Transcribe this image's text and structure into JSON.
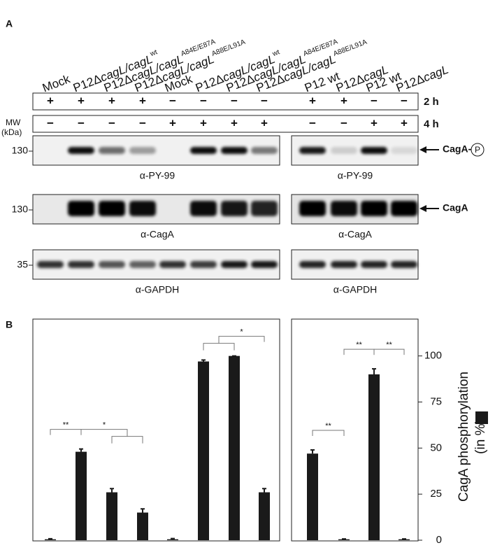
{
  "panel_labels": [
    "A",
    "B"
  ],
  "lanes": [
    {
      "prefix": "Mock"
    },
    {
      "prefix": "P12Δ",
      "italic": "cagL/cagL",
      "sup": "wt"
    },
    {
      "prefix": "P12Δ",
      "italic": "cagL/cagL",
      "sup": "A84E/E87A"
    },
    {
      "prefix": "P12Δ",
      "italic": "cagL/cagL",
      "sup": "A88E/L91A"
    },
    {
      "prefix": "Mock"
    },
    {
      "prefix": "P12Δ",
      "italic": "cagL/cagL",
      "sup": "wt"
    },
    {
      "prefix": "P12Δ",
      "italic": "cagL/cagL",
      "sup": "A84E/E87A"
    },
    {
      "prefix": "P12Δ",
      "italic": "cagL/cagL",
      "sup": "A88E/L91A"
    },
    {
      "prefix": "P12 wt"
    },
    {
      "prefix": "P12Δ",
      "italic": "cagL"
    },
    {
      "prefix": "P12 wt"
    },
    {
      "prefix": "P12Δ",
      "italic": "cagL"
    }
  ],
  "conditions": [
    {
      "label": "2 h",
      "marks": [
        "+",
        "+",
        "+",
        "+",
        "−",
        "−",
        "−",
        "−",
        "+",
        "+",
        "−",
        "−"
      ]
    },
    {
      "label": "4 h",
      "marks": [
        "−",
        "−",
        "−",
        "−",
        "+",
        "+",
        "+",
        "+",
        "−",
        "−",
        "+",
        "+"
      ]
    }
  ],
  "mw_label": [
    "MW",
    "(kDa)"
  ],
  "blots": [
    {
      "mw": "130",
      "antibody": "α-PY-99",
      "arrow": "CagA-",
      "circled": "P"
    },
    {
      "mw": "130",
      "antibody": "α-CagA",
      "arrow": "CagA"
    },
    {
      "mw": "35",
      "antibody": "α-GAPDH"
    }
  ],
  "chart_data": [
    {
      "type": "bar",
      "categories": [
        null,
        null,
        null,
        null,
        null,
        null,
        null,
        null
      ],
      "values": [
        0.5,
        48,
        26,
        15,
        0.5,
        97,
        100,
        26
      ],
      "errors": [
        0.3,
        1.5,
        2,
        2,
        0.4,
        0.8,
        0,
        2
      ],
      "color": "#1a1a1a",
      "ylim": [
        0,
        120
      ],
      "significance": [
        {
          "label": "**",
          "a": [
            0
          ],
          "b": [
            1
          ]
        },
        {
          "label": "*",
          "a": [
            1
          ],
          "b": [
            2,
            3
          ]
        },
        {
          "label": "*",
          "a": [
            5,
            6
          ],
          "b": [
            7
          ]
        }
      ]
    },
    {
      "type": "bar",
      "categories": [
        null,
        null,
        null,
        null
      ],
      "values": [
        47,
        0.5,
        90,
        0.5
      ],
      "errors": [
        2,
        0.2,
        3,
        0.2
      ],
      "color": "#1a1a1a",
      "ylim": [
        0,
        120
      ],
      "yticks": [
        0,
        25,
        50,
        75,
        100
      ],
      "ylabel": [
        "CagA phosphorylation",
        "(in %)"
      ],
      "significance": [
        {
          "label": "**",
          "a": [
            0
          ],
          "b": [
            1
          ]
        },
        {
          "label": "**",
          "a": [
            1
          ],
          "b": [
            2
          ]
        },
        {
          "label": "**",
          "a": [
            2
          ],
          "b": [
            3
          ]
        }
      ]
    }
  ]
}
